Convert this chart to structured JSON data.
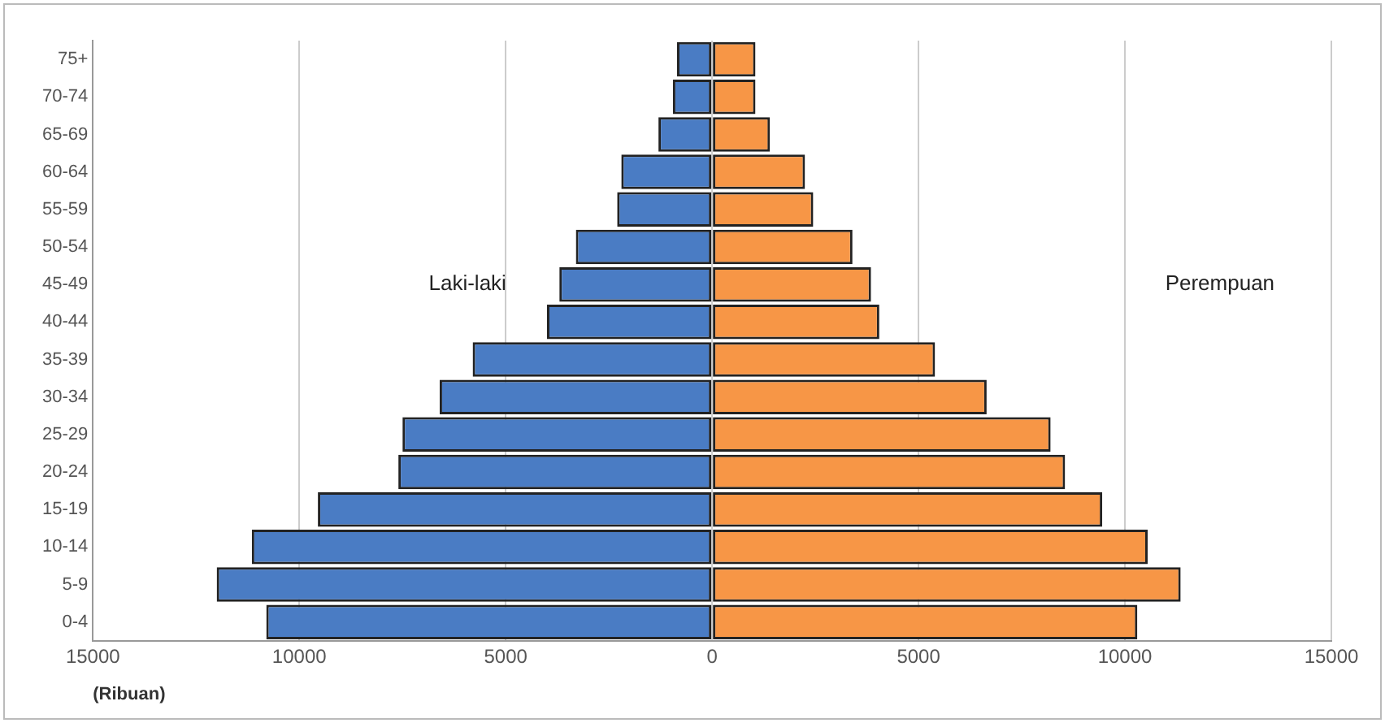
{
  "chart_data": {
    "type": "bar",
    "orientation": "horizontal",
    "stacked": true,
    "xlabel": "(Ribuan)",
    "categories": [
      "75+",
      "70-74",
      "65-69",
      "60-64",
      "55-59",
      "50-54",
      "45-49",
      "40-44",
      "35-39",
      "30-34",
      "25-29",
      "20-24",
      "15-19",
      "10-14",
      "5-9",
      "0-4"
    ],
    "series": [
      {
        "name": "Laki-laki",
        "color": "#4a7cc4",
        "values": [
          -850,
          -950,
          -1300,
          -2200,
          -2300,
          -3300,
          -3700,
          -4000,
          -5800,
          -6600,
          -7500,
          -7600,
          -9550,
          -11150,
          -12000,
          -10800
        ]
      },
      {
        "name": "Perempuan",
        "color": "#f79646",
        "values": [
          1050,
          1050,
          1400,
          2250,
          2450,
          3400,
          3850,
          4050,
          5400,
          6650,
          8200,
          8550,
          9450,
          10550,
          11350,
          10300
        ]
      }
    ],
    "xlim": [
      -15000,
      15000
    ],
    "xticks": [
      {
        "value": -15000,
        "label": "15000"
      },
      {
        "value": -10000,
        "label": "10000"
      },
      {
        "value": -5000,
        "label": "5000"
      },
      0,
      5000,
      10000,
      15000
    ],
    "grid": "x",
    "legend": false
  }
}
